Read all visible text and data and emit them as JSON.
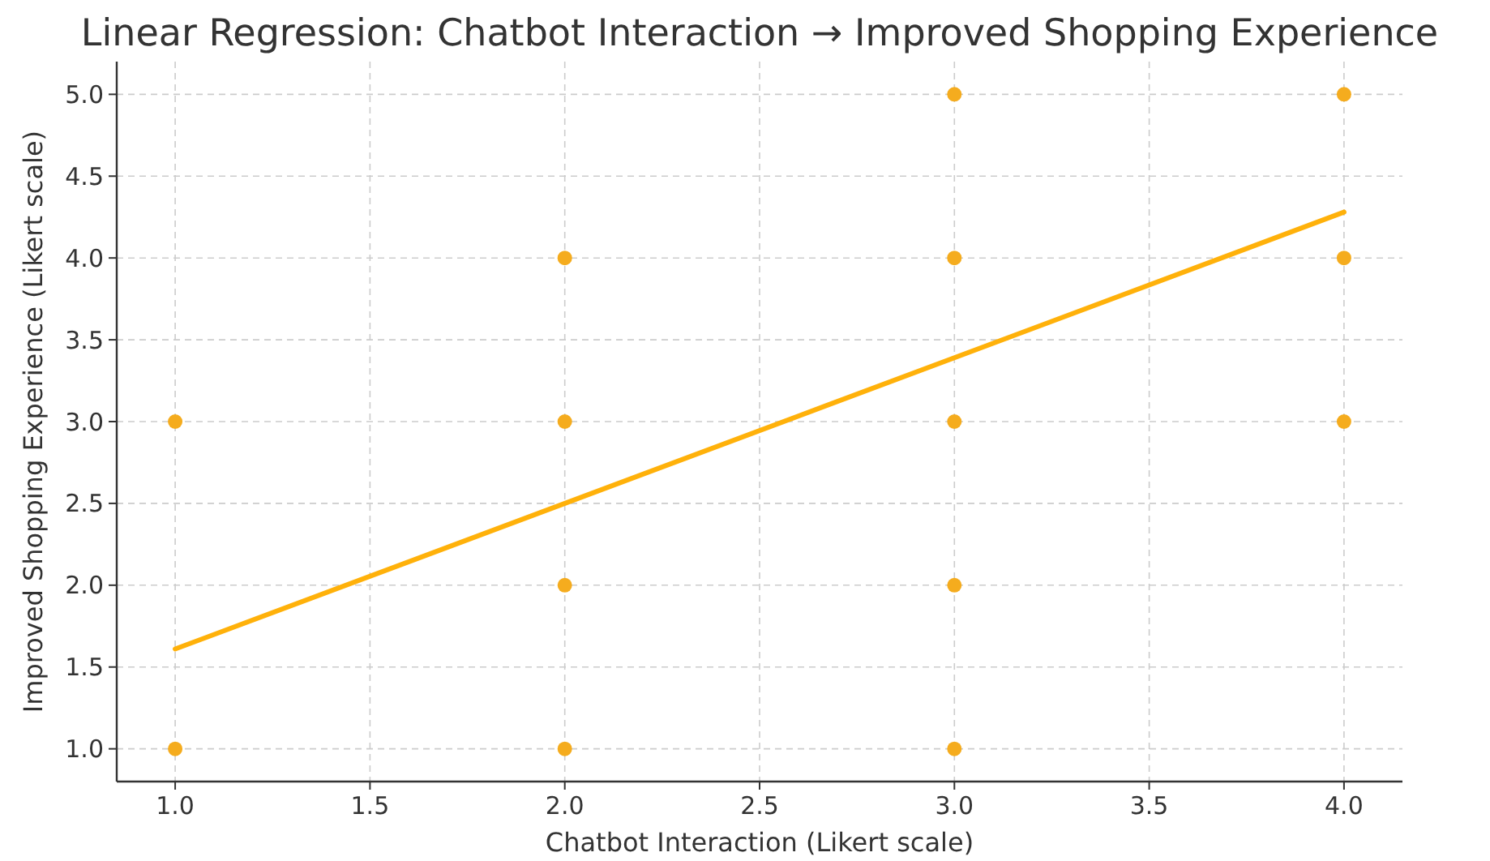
{
  "chart_data": {
    "type": "scatter",
    "title": "Linear Regression: Chatbot Interaction → Improved Shopping Experience",
    "xlabel": "Chatbot Interaction (Likert scale)",
    "ylabel": "Improved Shopping Experience (Likert scale)",
    "xlim": [
      0.85,
      4.15
    ],
    "ylim": [
      0.8,
      5.2
    ],
    "xticks": [
      {
        "value": 1,
        "label": "1.0"
      },
      {
        "value": 1.5,
        "label": "1.5"
      },
      {
        "value": 2,
        "label": "2.0"
      },
      {
        "value": 2.5,
        "label": "2.5"
      },
      {
        "value": 3,
        "label": "3.0"
      },
      {
        "value": 3.5,
        "label": "3.5"
      },
      {
        "value": 4,
        "label": "4.0"
      }
    ],
    "yticks": [
      {
        "value": 1,
        "label": "1.0"
      },
      {
        "value": 1.5,
        "label": "1.5"
      },
      {
        "value": 2,
        "label": "2.0"
      },
      {
        "value": 2.5,
        "label": "2.5"
      },
      {
        "value": 3,
        "label": "3.0"
      },
      {
        "value": 3.5,
        "label": "3.5"
      },
      {
        "value": 4,
        "label": "4.0"
      },
      {
        "value": 4.5,
        "label": "4.5"
      },
      {
        "value": 5,
        "label": "5.0"
      }
    ],
    "grid": true,
    "series": [
      {
        "marker": "circle",
        "color": "#f5ac1e",
        "x": [
          1,
          1,
          2,
          2,
          2,
          2,
          3,
          3,
          3,
          3,
          3,
          4,
          4,
          4
        ],
        "values": [
          3,
          1,
          4,
          3,
          2,
          1,
          5,
          4,
          3,
          2,
          1,
          5,
          4,
          3
        ]
      },
      {
        "type": "line",
        "color": "#ffb10a",
        "line_style": "solid",
        "marker": "none",
        "x": [
          1,
          4
        ],
        "values": [
          1.61,
          4.28
        ]
      }
    ]
  }
}
